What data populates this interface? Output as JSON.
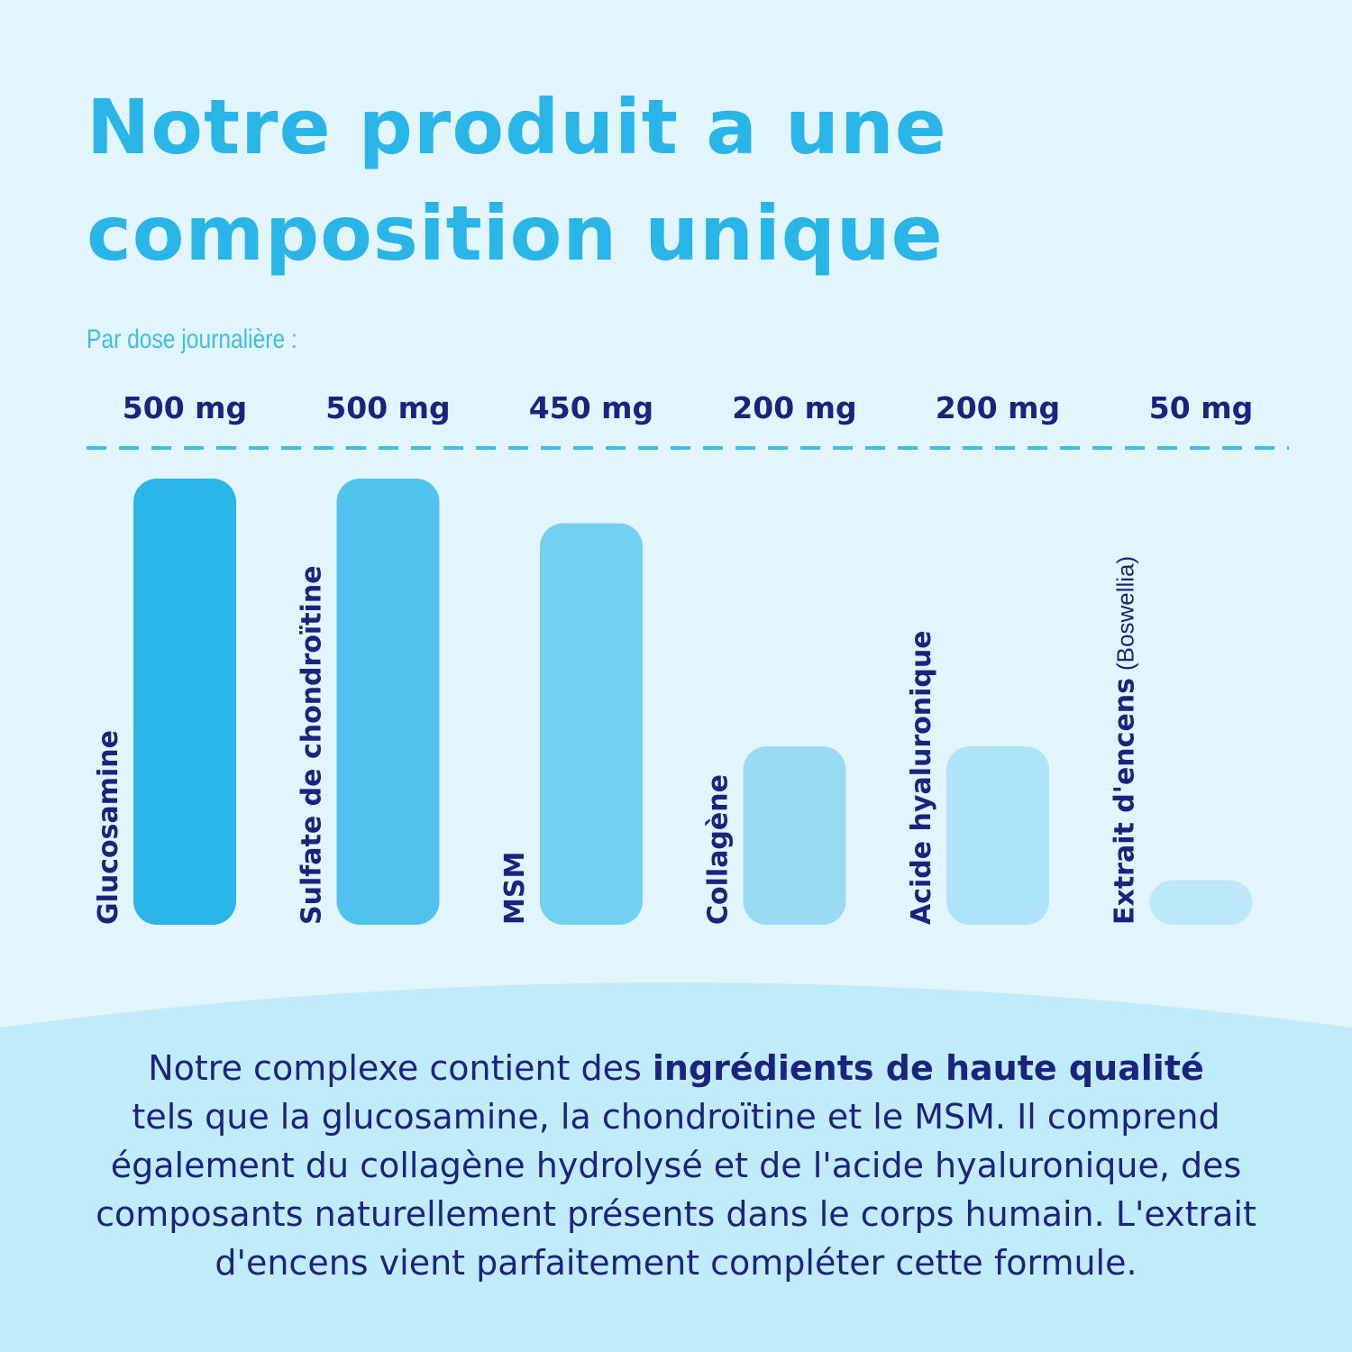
{
  "title_line1": "Notre produit a une",
  "title_line2": "composition unique",
  "subtitle": "Par dose journalière :",
  "colors": {
    "background": "#e3f5fc",
    "title": "#29b5e8",
    "text_dark": "#1a237e",
    "bottom_panel": "#c0ebfb",
    "dashed_line": "#3dbde9"
  },
  "chart_data": {
    "type": "bar",
    "unit": "mg",
    "categories": [
      "Glucosamine",
      "Sulfate de chondroïtine",
      "MSM",
      "Collagène",
      "Acide hyaluronique",
      "Extrait d'encens"
    ],
    "category_notes": [
      "",
      "",
      "",
      "",
      "",
      "(Boswellia)"
    ],
    "values": [
      500,
      500,
      450,
      200,
      200,
      50
    ],
    "value_labels": [
      "500 mg",
      "500 mg",
      "450 mg",
      "200 mg",
      "200 mg",
      "50 mg"
    ],
    "bar_colors": [
      "#29b5e8",
      "#4fc3ec",
      "#72d0f1",
      "#98dcf4",
      "#aee4f7",
      "#bce9f9"
    ],
    "grid": false,
    "legend": "none"
  },
  "description": {
    "line1_start": "Notre complexe contient des ",
    "line1_bold": "ingrédients de haute qualité",
    "rest": "tels que la glucosamine, la chondroïtine et le MSM. Il comprend également du collagène hydrolysé et de l'acide hyaluronique, des composants naturellement présents dans le corps humain. L'extrait d'encens vient parfaitement compléter cette formule."
  }
}
